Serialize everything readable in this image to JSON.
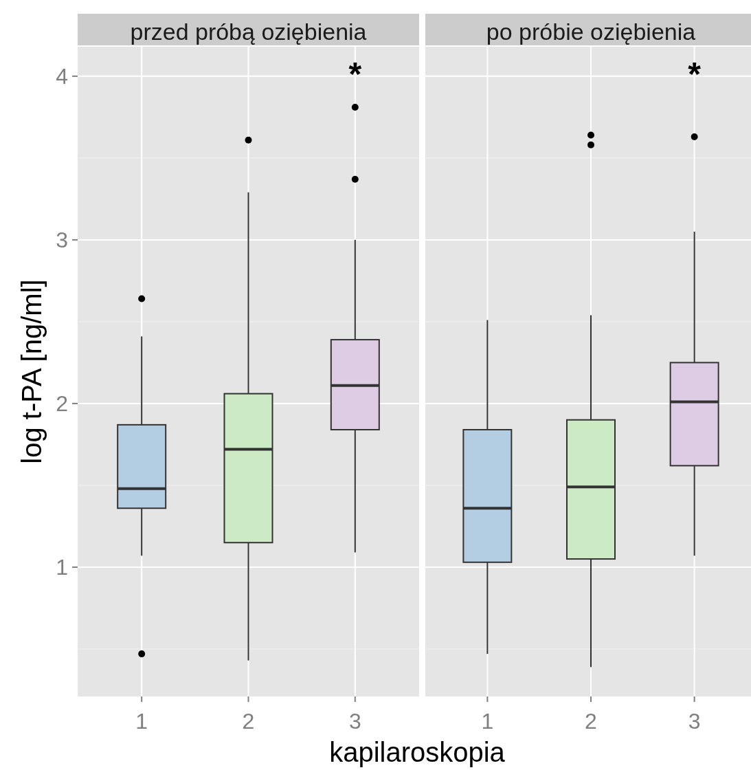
{
  "chart_data": [
    {
      "type": "box",
      "title": "przed próbą oziębienia",
      "xlabel": "kapilaroskopia",
      "ylabel": "log t-PA [ng/ml]",
      "categories": [
        "1",
        "2",
        "3"
      ],
      "colors": [
        "#b3cde3",
        "#ccebc5",
        "#decbe4"
      ],
      "boxes": [
        {
          "low": 1.07,
          "q1": 1.36,
          "median": 1.48,
          "q3": 1.87,
          "high": 2.41,
          "outliers": [
            2.64,
            0.47
          ]
        },
        {
          "low": 0.43,
          "q1": 1.15,
          "median": 1.72,
          "q3": 2.06,
          "high": 3.29,
          "outliers": [
            3.61
          ]
        },
        {
          "low": 1.09,
          "q1": 1.84,
          "median": 2.11,
          "q3": 2.39,
          "high": 3.0,
          "outliers": [
            3.81,
            3.37
          ]
        }
      ],
      "annotations": [
        "*"
      ],
      "ylim": [
        0.21,
        4.18
      ],
      "yticks": [
        1,
        2,
        3,
        4
      ],
      "grid": true
    },
    {
      "type": "box",
      "title": "po próbie oziębienia",
      "categories": [
        "1",
        "2",
        "3"
      ],
      "colors": [
        "#b3cde3",
        "#ccebc5",
        "#decbe4"
      ],
      "boxes": [
        {
          "low": 0.47,
          "q1": 1.03,
          "median": 1.36,
          "q3": 1.84,
          "high": 2.51
        },
        {
          "low": 0.39,
          "q1": 1.05,
          "median": 1.49,
          "q3": 1.9,
          "high": 2.54,
          "outliers": [
            3.64,
            3.58
          ]
        },
        {
          "low": 1.07,
          "q1": 1.62,
          "median": 2.01,
          "q3": 2.25,
          "high": 3.05,
          "outliers": [
            3.63
          ]
        }
      ],
      "annotations": [
        "*"
      ],
      "ylim": [
        0.21,
        4.18
      ],
      "yticks": [
        1,
        2,
        3,
        4
      ],
      "grid": true,
      "tick_labels": "x"
    }
  ]
}
